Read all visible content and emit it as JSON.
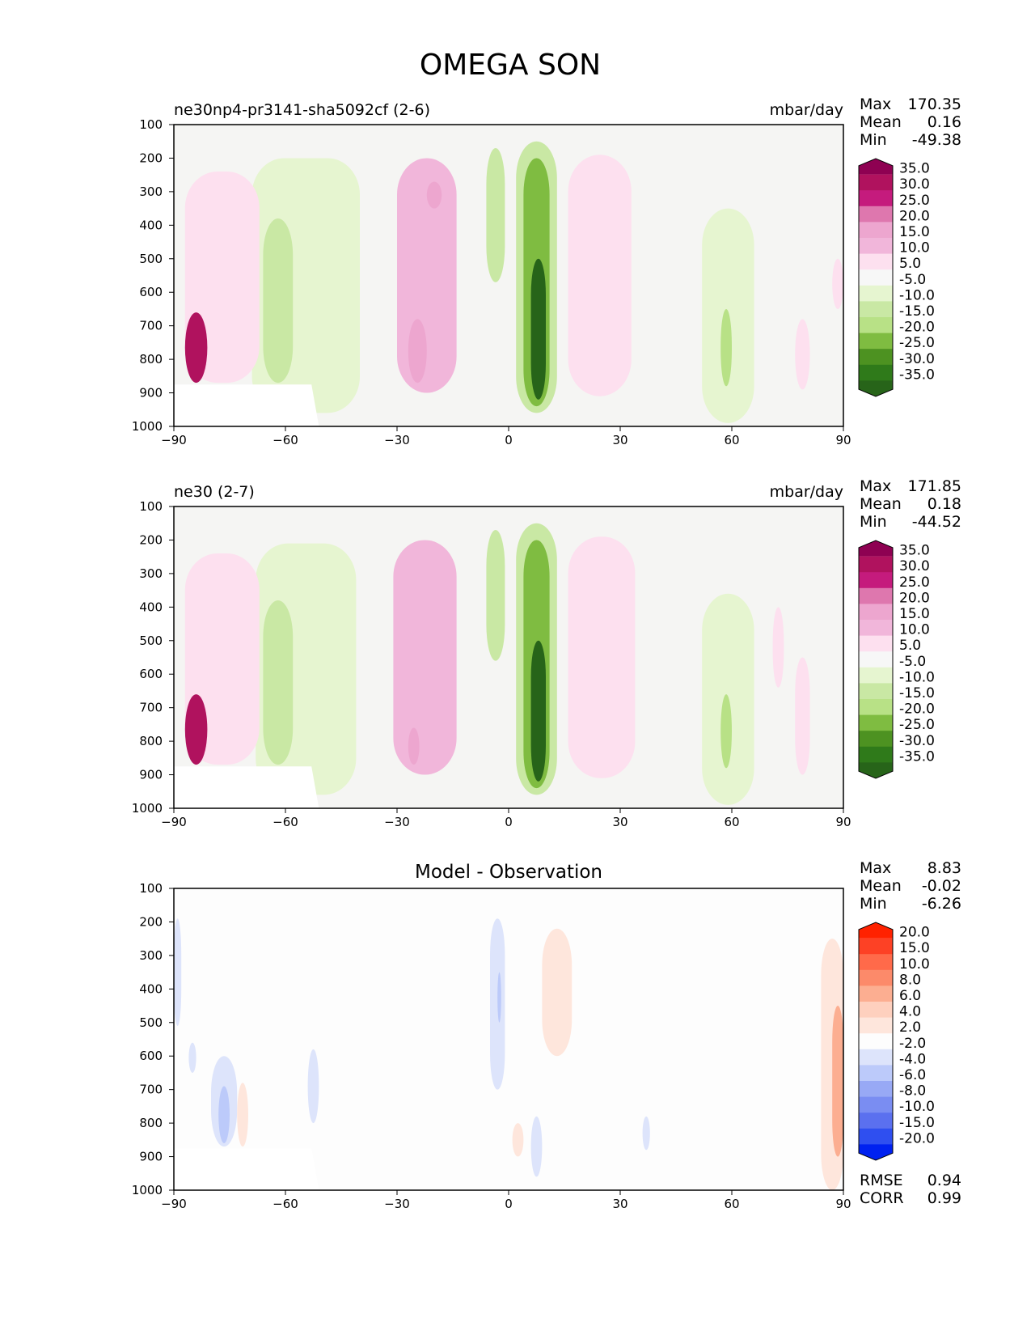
{
  "figure_title": "OMEGA SON",
  "colors": {
    "background": "#f5f5f3",
    "diff_background": "#fdfdfd",
    "axes": "#000000"
  },
  "chart_data": [
    {
      "type": "contour",
      "title": "ne30np4-pr3141-sha5092cf (2-6)",
      "units": "mbar/day",
      "stats": [
        {
          "label": "Max",
          "value": "170.35"
        },
        {
          "label": "Mean",
          "value": "0.16"
        },
        {
          "label": "Min",
          "value": "-49.38"
        }
      ],
      "xlim": [
        -90,
        90
      ],
      "ylim": [
        1000,
        100
      ],
      "xticks": [
        "−90",
        "−60",
        "−30",
        "0",
        "30",
        "60",
        "90"
      ],
      "yticks": [
        "100",
        "200",
        "300",
        "400",
        "500",
        "600",
        "700",
        "800",
        "900",
        "1000"
      ],
      "colorbar": {
        "labels": [
          "35.0",
          "30.0",
          "25.0",
          "20.0",
          "15.0",
          "10.0",
          "5.0",
          "-5.0",
          "-10.0",
          "-15.0",
          "-20.0",
          "-25.0",
          "-30.0",
          "-35.0"
        ],
        "colors": [
          "#8e0152",
          "#b0125e",
          "#c51b7d",
          "#de77ae",
          "#eda6cf",
          "#f1b6da",
          "#fde0ef",
          "#f7f7f7",
          "#e6f5d0",
          "#c9e8a4",
          "#b8e186",
          "#7fbc41",
          "#4d9221",
          "#2f7a1a",
          "#276419"
        ]
      },
      "features": [
        {
          "lat": [
            -30,
            -14
          ],
          "p": [
            200,
            900
          ],
          "value": 12
        },
        {
          "lat": [
            -27,
            -22
          ],
          "p": [
            680,
            870
          ],
          "value": 18
        },
        {
          "lat": [
            -22,
            -18
          ],
          "p": [
            270,
            350
          ],
          "value": 18
        },
        {
          "lat": [
            -69,
            -40
          ],
          "p": [
            200,
            960
          ],
          "value": -8
        },
        {
          "lat": [
            -66,
            -58
          ],
          "p": [
            380,
            870
          ],
          "value": -14
        },
        {
          "lat": [
            -6,
            -1
          ],
          "p": [
            170,
            570
          ],
          "value": -12
        },
        {
          "lat": [
            2,
            13
          ],
          "p": [
            150,
            960
          ],
          "value": -12
        },
        {
          "lat": [
            4,
            11
          ],
          "p": [
            200,
            940
          ],
          "value": -22
        },
        {
          "lat": [
            6,
            10
          ],
          "p": [
            500,
            920
          ],
          "value": -36
        },
        {
          "lat": [
            16,
            33
          ],
          "p": [
            190,
            910
          ],
          "value": 8
        },
        {
          "lat": [
            52,
            66
          ],
          "p": [
            350,
            990
          ],
          "value": -8
        },
        {
          "lat": [
            57,
            60
          ],
          "p": [
            650,
            880
          ],
          "value": -16
        },
        {
          "lat": [
            -87,
            -67
          ],
          "p": [
            240,
            870
          ],
          "value": 8
        },
        {
          "lat": [
            -87,
            -81
          ],
          "p": [
            660,
            870
          ],
          "value": 34
        },
        {
          "lat": [
            77,
            81
          ],
          "p": [
            680,
            890
          ],
          "value": 8
        },
        {
          "lat": [
            87,
            90
          ],
          "p": [
            500,
            650
          ],
          "value": 7
        }
      ]
    },
    {
      "type": "contour",
      "title": "ne30 (2-7)",
      "units": "mbar/day",
      "stats": [
        {
          "label": "Max",
          "value": "171.85"
        },
        {
          "label": "Mean",
          "value": "0.18"
        },
        {
          "label": "Min",
          "value": "-44.52"
        }
      ],
      "xlim": [
        -90,
        90
      ],
      "ylim": [
        1000,
        100
      ],
      "xticks": [
        "−90",
        "−60",
        "−30",
        "0",
        "30",
        "60",
        "90"
      ],
      "yticks": [
        "100",
        "200",
        "300",
        "400",
        "500",
        "600",
        "700",
        "800",
        "900",
        "1000"
      ],
      "colorbar": {
        "labels": [
          "35.0",
          "30.0",
          "25.0",
          "20.0",
          "15.0",
          "10.0",
          "5.0",
          "-5.0",
          "-10.0",
          "-15.0",
          "-20.0",
          "-25.0",
          "-30.0",
          "-35.0"
        ],
        "colors": [
          "#8e0152",
          "#b0125e",
          "#c51b7d",
          "#de77ae",
          "#eda6cf",
          "#f1b6da",
          "#fde0ef",
          "#f7f7f7",
          "#e6f5d0",
          "#c9e8a4",
          "#b8e186",
          "#7fbc41",
          "#4d9221",
          "#2f7a1a",
          "#276419"
        ]
      },
      "features": [
        {
          "lat": [
            -31,
            -14
          ],
          "p": [
            200,
            900
          ],
          "value": 10
        },
        {
          "lat": [
            -27,
            -24
          ],
          "p": [
            760,
            870
          ],
          "value": 16
        },
        {
          "lat": [
            -68,
            -41
          ],
          "p": [
            210,
            960
          ],
          "value": -8
        },
        {
          "lat": [
            -66,
            -58
          ],
          "p": [
            380,
            870
          ],
          "value": -14
        },
        {
          "lat": [
            -6,
            -1
          ],
          "p": [
            170,
            560
          ],
          "value": -11
        },
        {
          "lat": [
            2,
            13
          ],
          "p": [
            150,
            960
          ],
          "value": -12
        },
        {
          "lat": [
            4,
            11
          ],
          "p": [
            200,
            940
          ],
          "value": -22
        },
        {
          "lat": [
            6,
            10
          ],
          "p": [
            500,
            920
          ],
          "value": -36
        },
        {
          "lat": [
            16,
            34
          ],
          "p": [
            190,
            910
          ],
          "value": 8
        },
        {
          "lat": [
            52,
            66
          ],
          "p": [
            360,
            990
          ],
          "value": -8
        },
        {
          "lat": [
            57,
            60
          ],
          "p": [
            660,
            880
          ],
          "value": -16
        },
        {
          "lat": [
            -87,
            -67
          ],
          "p": [
            240,
            870
          ],
          "value": 8
        },
        {
          "lat": [
            -87,
            -81
          ],
          "p": [
            660,
            870
          ],
          "value": 34
        },
        {
          "lat": [
            71,
            74
          ],
          "p": [
            400,
            640
          ],
          "value": 7
        },
        {
          "lat": [
            77,
            81
          ],
          "p": [
            550,
            900
          ],
          "value": 7
        }
      ]
    },
    {
      "type": "contour",
      "title": "Model - Observation",
      "units": "",
      "stats": [
        {
          "label": "Max",
          "value": "8.83"
        },
        {
          "label": "Mean",
          "value": "-0.02"
        },
        {
          "label": "Min",
          "value": "-6.26"
        }
      ],
      "extra_stats": [
        {
          "label": "RMSE",
          "value": "0.94"
        },
        {
          "label": "CORR",
          "value": "0.99"
        }
      ],
      "xlim": [
        -90,
        90
      ],
      "ylim": [
        1000,
        100
      ],
      "xticks": [
        "−90",
        "−60",
        "−30",
        "0",
        "30",
        "60",
        "90"
      ],
      "yticks": [
        "100",
        "200",
        "300",
        "400",
        "500",
        "600",
        "700",
        "800",
        "900",
        "1000"
      ],
      "colorbar": {
        "labels": [
          "20.0",
          "15.0",
          "10.0",
          "8.0",
          "6.0",
          "4.0",
          "2.0",
          "-2.0",
          "-4.0",
          "-6.0",
          "-8.0",
          "-10.0",
          "-15.0",
          "-20.0"
        ],
        "colors": [
          "#ff2200",
          "#fd4125",
          "#ff6a4a",
          "#fc8a6a",
          "#fcae91",
          "#fed0be",
          "#fee6dc",
          "#fdfdfd",
          "#dde4fb",
          "#bccafa",
          "#98a9f5",
          "#7a8df2",
          "#5b70ef",
          "#2f4ff0",
          "#0021f0"
        ]
      },
      "features": [
        {
          "lat": [
            -90,
            -88
          ],
          "p": [
            190,
            510
          ],
          "value": -3
        },
        {
          "lat": [
            -5,
            -1
          ],
          "p": [
            190,
            700
          ],
          "value": -3
        },
        {
          "lat": [
            -3,
            -2
          ],
          "p": [
            350,
            500
          ],
          "value": -5
        },
        {
          "lat": [
            9,
            17
          ],
          "p": [
            220,
            600
          ],
          "value": 3
        },
        {
          "lat": [
            -80,
            -73
          ],
          "p": [
            600,
            870
          ],
          "value": -3
        },
        {
          "lat": [
            -78,
            -75
          ],
          "p": [
            690,
            860
          ],
          "value": -5
        },
        {
          "lat": [
            -73,
            -70
          ],
          "p": [
            680,
            870
          ],
          "value": 3
        },
        {
          "lat": [
            -54,
            -51
          ],
          "p": [
            580,
            800
          ],
          "value": -3
        },
        {
          "lat": [
            -86,
            -84
          ],
          "p": [
            560,
            650
          ],
          "value": -3
        },
        {
          "lat": [
            6,
            9
          ],
          "p": [
            780,
            960
          ],
          "value": -3
        },
        {
          "lat": [
            1,
            4
          ],
          "p": [
            800,
            900
          ],
          "value": 3
        },
        {
          "lat": [
            36,
            38
          ],
          "p": [
            780,
            880
          ],
          "value": -3
        },
        {
          "lat": [
            84,
            90
          ],
          "p": [
            250,
            1000
          ],
          "value": 3
        },
        {
          "lat": [
            87,
            90
          ],
          "p": [
            450,
            900
          ],
          "value": 6
        }
      ]
    }
  ]
}
